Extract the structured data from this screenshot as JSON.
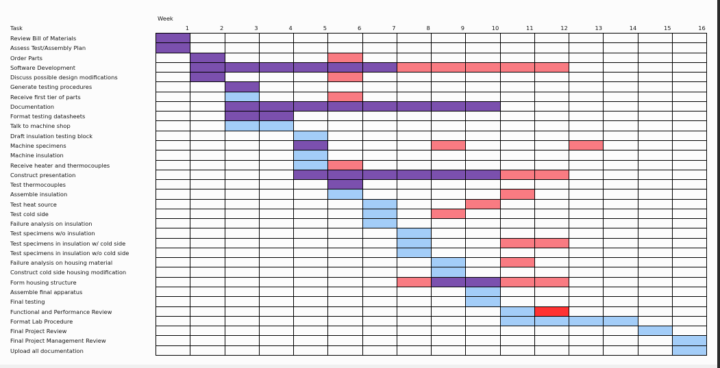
{
  "chart_data": {
    "type": "gantt",
    "header": {
      "week_label": "Week",
      "task_label": "Task"
    },
    "weeks": [
      1,
      2,
      3,
      4,
      5,
      6,
      7,
      8,
      9,
      10,
      11,
      12,
      13,
      14,
      15,
      16
    ],
    "colors": {
      "P": "#7b50ae",
      "B": "#a3cdf8",
      "R": "#f97b82",
      "X": "#ff3232",
      "empty": "#fcfcfc",
      "grid": "#000000"
    },
    "tasks": [
      {
        "name": "Review Bill of Materials",
        "spans": [
          {
            "status": "P",
            "weeks": [
              1
            ]
          }
        ]
      },
      {
        "name": "Assess Test/Assembly Plan",
        "spans": [
          {
            "status": "P",
            "weeks": [
              1
            ]
          }
        ]
      },
      {
        "name": "Order Parts",
        "spans": [
          {
            "status": "P",
            "weeks": [
              2
            ]
          },
          {
            "status": "R",
            "weeks": [
              6
            ]
          }
        ]
      },
      {
        "name": "Software Development",
        "spans": [
          {
            "status": "P",
            "weeks": [
              2,
              3,
              4,
              5,
              6,
              7
            ]
          },
          {
            "status": "R",
            "weeks": [
              8,
              9,
              10,
              11,
              12
            ]
          }
        ]
      },
      {
        "name": "Discuss possible design modifications",
        "spans": [
          {
            "status": "P",
            "weeks": [
              2
            ]
          },
          {
            "status": "R",
            "weeks": [
              6
            ]
          }
        ]
      },
      {
        "name": "Generate testing procedures",
        "spans": [
          {
            "status": "P",
            "weeks": [
              3
            ]
          }
        ]
      },
      {
        "name": "Receive first tier of parts",
        "spans": [
          {
            "status": "B",
            "weeks": [
              3
            ]
          },
          {
            "status": "R",
            "weeks": [
              6
            ]
          }
        ]
      },
      {
        "name": "Documentation",
        "spans": [
          {
            "status": "P",
            "weeks": [
              3,
              4,
              5,
              6,
              7,
              8,
              9,
              10
            ]
          }
        ]
      },
      {
        "name": "Format testing datasheets",
        "spans": [
          {
            "status": "P",
            "weeks": [
              3,
              4
            ]
          }
        ]
      },
      {
        "name": "Talk to machine shop",
        "spans": [
          {
            "status": "B",
            "weeks": [
              3,
              4
            ]
          }
        ]
      },
      {
        "name": "Draft insulation testing block",
        "spans": [
          {
            "status": "B",
            "weeks": [
              5
            ]
          }
        ]
      },
      {
        "name": "Machine specimens",
        "spans": [
          {
            "status": "P",
            "weeks": [
              5
            ]
          },
          {
            "status": "R",
            "weeks": [
              9,
              13
            ]
          }
        ]
      },
      {
        "name": "Machine insulation",
        "spans": [
          {
            "status": "B",
            "weeks": [
              5
            ]
          }
        ]
      },
      {
        "name": "Receive heater and thermocouples",
        "spans": [
          {
            "status": "B",
            "weeks": [
              5
            ]
          },
          {
            "status": "R",
            "weeks": [
              6
            ]
          }
        ]
      },
      {
        "name": "Construct presentation",
        "spans": [
          {
            "status": "P",
            "weeks": [
              5,
              6,
              7,
              8,
              9,
              10
            ]
          },
          {
            "status": "R",
            "weeks": [
              11,
              12
            ]
          }
        ]
      },
      {
        "name": "Test thermocouples",
        "spans": [
          {
            "status": "P",
            "weeks": [
              6
            ]
          }
        ]
      },
      {
        "name": "Assemble insulation",
        "spans": [
          {
            "status": "B",
            "weeks": [
              6
            ]
          },
          {
            "status": "R",
            "weeks": [
              11
            ]
          }
        ]
      },
      {
        "name": "Test heat source",
        "spans": [
          {
            "status": "B",
            "weeks": [
              7
            ]
          },
          {
            "status": "R",
            "weeks": [
              10
            ]
          }
        ]
      },
      {
        "name": "Test cold side",
        "spans": [
          {
            "status": "B",
            "weeks": [
              7
            ]
          },
          {
            "status": "R",
            "weeks": [
              9
            ]
          }
        ]
      },
      {
        "name": "Failure analysis on insulation",
        "spans": [
          {
            "status": "B",
            "weeks": [
              7
            ]
          }
        ]
      },
      {
        "name": "Test specimens w/o insulation",
        "spans": [
          {
            "status": "B",
            "weeks": [
              8
            ]
          }
        ]
      },
      {
        "name": "Test specimens in insulation w/ cold side",
        "spans": [
          {
            "status": "B",
            "weeks": [
              8
            ]
          },
          {
            "status": "R",
            "weeks": [
              11,
              12
            ]
          }
        ]
      },
      {
        "name": "Test specimens in insulation w/o cold side",
        "spans": [
          {
            "status": "B",
            "weeks": [
              8
            ]
          }
        ]
      },
      {
        "name": "Failure analysis on housing material",
        "spans": [
          {
            "status": "B",
            "weeks": [
              9
            ]
          },
          {
            "status": "R",
            "weeks": [
              11
            ]
          }
        ]
      },
      {
        "name": "Construct cold side housing modification",
        "spans": [
          {
            "status": "B",
            "weeks": [
              9
            ]
          }
        ]
      },
      {
        "name": "Form housing structure",
        "spans": [
          {
            "status": "R",
            "weeks": [
              8
            ]
          },
          {
            "status": "P",
            "weeks": [
              9,
              10
            ]
          },
          {
            "status": "R",
            "weeks": [
              11,
              12
            ]
          }
        ]
      },
      {
        "name": "Assemble final apparatus",
        "spans": [
          {
            "status": "B",
            "weeks": [
              10
            ]
          }
        ]
      },
      {
        "name": "Final testing",
        "spans": [
          {
            "status": "B",
            "weeks": [
              10
            ]
          }
        ]
      },
      {
        "name": "Functional and Performance Review",
        "spans": [
          {
            "status": "B",
            "weeks": [
              11
            ]
          },
          {
            "status": "X",
            "weeks": [
              12
            ]
          }
        ]
      },
      {
        "name": "Format Lab Procedure",
        "spans": [
          {
            "status": "B",
            "weeks": [
              11,
              12,
              13,
              14
            ]
          }
        ]
      },
      {
        "name": "Final Project Review",
        "spans": [
          {
            "status": "B",
            "weeks": [
              15
            ]
          }
        ]
      },
      {
        "name": "Final Project Management Review",
        "spans": [
          {
            "status": "B",
            "weeks": [
              16
            ]
          }
        ]
      },
      {
        "name": "Upload all documentation",
        "spans": [
          {
            "status": "B",
            "weeks": [
              16
            ]
          }
        ]
      }
    ]
  }
}
